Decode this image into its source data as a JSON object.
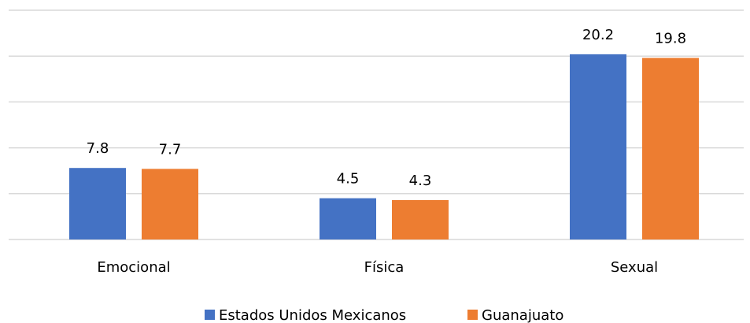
{
  "chart_data": {
    "type": "bar",
    "categories": [
      "Emocional",
      "Física",
      "Sexual"
    ],
    "series": [
      {
        "name": "Estados Unidos Mexicanos",
        "color": "#4472c4",
        "values": [
          7.8,
          4.5,
          20.2
        ]
      },
      {
        "name": "Guanajuato",
        "color": "#ed7d31",
        "values": [
          7.7,
          4.3,
          19.8
        ]
      }
    ],
    "ylim": [
      0,
      25
    ],
    "yticks": [
      0,
      5,
      10,
      15,
      20,
      25
    ],
    "grid": true,
    "legend": "bottom"
  }
}
